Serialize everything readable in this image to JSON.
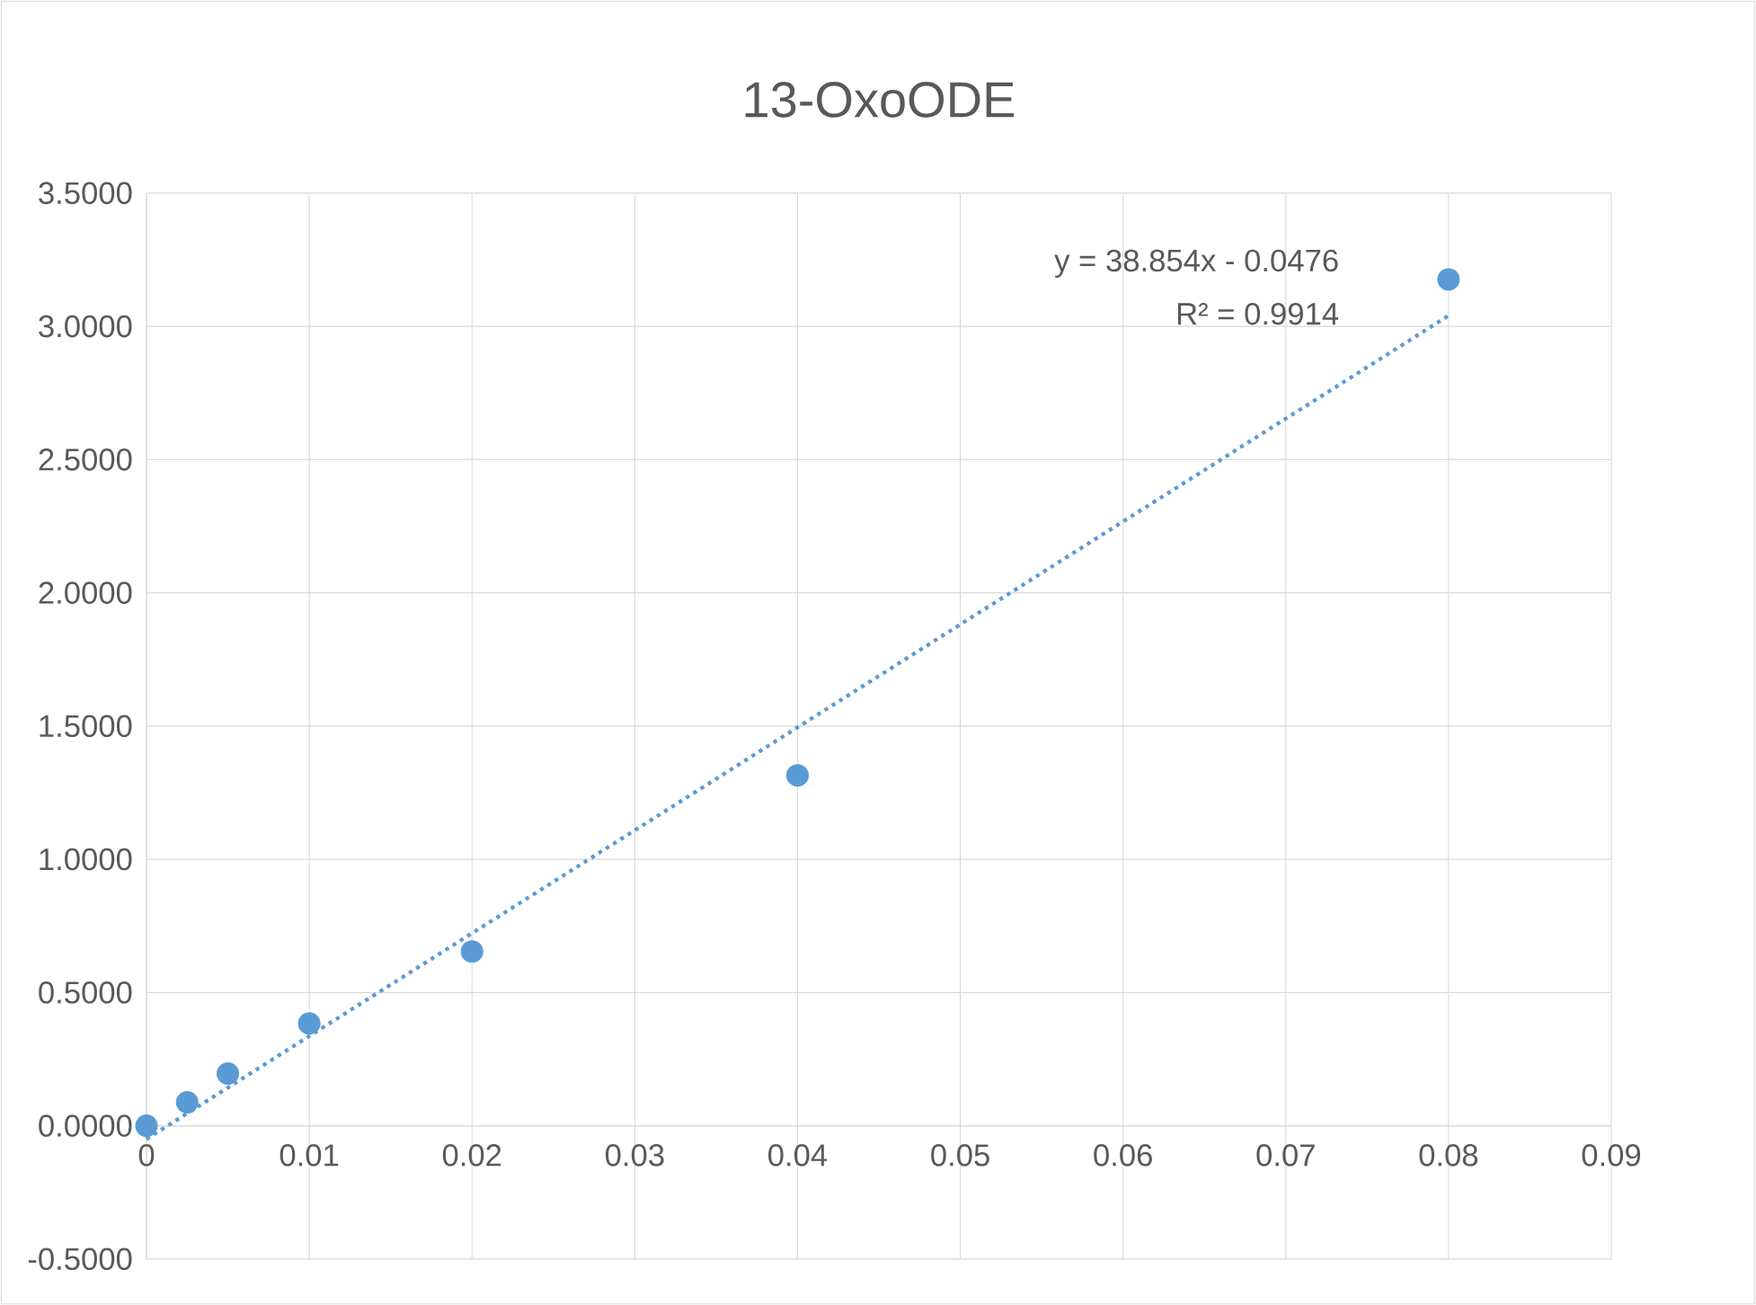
{
  "chart_data": {
    "type": "scatter",
    "title": "13-OxoODE",
    "series": [
      {
        "color": "#5b9bd5",
        "marker": "circle",
        "x": [
          0,
          0.0025,
          0.005,
          0.01,
          0.02,
          0.04,
          0.08
        ],
        "values": [
          0,
          0.088,
          0.196,
          0.384,
          0.654,
          1.315,
          3.176
        ]
      },
      {
        "type": "line",
        "color": "#5b9bd5",
        "marker": "none",
        "line_style": "dotted",
        "x": [
          0,
          0.08
        ],
        "values": [
          -0.05,
          3.04
        ]
      }
    ],
    "annotations": [
      "y = 38.854x - 0.0476",
      "R² = 0.9914"
    ],
    "xlim": [
      0,
      0.09
    ],
    "xticks": [
      0,
      0.01,
      0.02,
      0.03,
      0.04,
      0.05,
      0.06,
      0.07,
      0.08,
      0.09
    ],
    "ylim": [
      -0.5,
      3.5
    ],
    "yticks": [
      {
        "value": -0.5,
        "label": "-0.5000"
      },
      {
        "value": 0,
        "label": "0.0000"
      },
      {
        "value": 0.5,
        "label": "0.5000"
      },
      {
        "value": 1,
        "label": "1.0000"
      },
      {
        "value": 1.5,
        "label": "1.5000"
      },
      {
        "value": 2,
        "label": "2.0000"
      },
      {
        "value": 2.5,
        "label": "2.5000"
      },
      {
        "value": 3,
        "label": "3.0000"
      },
      {
        "value": 3.5,
        "label": "3.5000"
      }
    ],
    "grid": true
  }
}
